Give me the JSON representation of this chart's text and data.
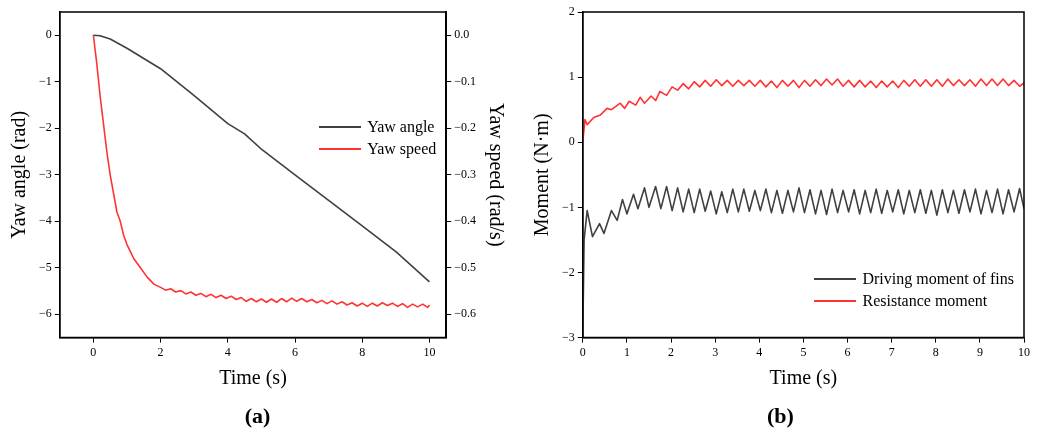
{
  "chart_data": [
    {
      "type": "line",
      "xlabel": "Time (s)",
      "ylabel": "Yaw angle (rad)",
      "y2label": "Yaw speed (rad/s)",
      "xlim": [
        -1,
        10.5
      ],
      "xticks": [
        0,
        2,
        4,
        6,
        8,
        10
      ],
      "ylim": [
        -6.5,
        0.5
      ],
      "yticks": [
        -6,
        -5,
        -4,
        -3,
        -2,
        -1,
        0
      ],
      "y2lim": [
        -0.65,
        0.05
      ],
      "y2ticks": [
        -0.6,
        -0.5,
        -0.4,
        -0.3,
        -0.2,
        -0.1,
        {
          "value": 0,
          "label": "0.0"
        }
      ],
      "legend": "right",
      "grid": false,
      "annotations": [
        "(a)"
      ],
      "series": [
        {
          "name": "Yaw angle",
          "color": "#404040",
          "x": [
            0,
            0.2,
            0.5,
            1,
            1.5,
            2,
            3,
            4,
            4.5,
            5,
            6,
            7,
            8,
            9,
            10
          ],
          "values": [
            0,
            -0.01,
            -0.08,
            -0.28,
            -0.5,
            -0.72,
            -1.3,
            -1.9,
            -2.12,
            -2.45,
            -3.0,
            -3.55,
            -4.1,
            -4.65,
            -5.3
          ]
        },
        {
          "name": "Yaw speed",
          "color": "#ff3333",
          "axis": "y2",
          "x": [
            0,
            0.1,
            0.2,
            0.3,
            0.4,
            0.5,
            0.6,
            0.7,
            0.8,
            0.9,
            1.0,
            1.2,
            1.4,
            1.6,
            1.8,
            2.0,
            2.15,
            2.3,
            2.45,
            2.6,
            2.75,
            2.9,
            3.05,
            3.2,
            3.35,
            3.5,
            3.65,
            3.8,
            3.95,
            4.1,
            4.25,
            4.4,
            4.55,
            4.7,
            4.85,
            5.0,
            5.15,
            5.3,
            5.45,
            5.6,
            5.75,
            5.9,
            6.05,
            6.2,
            6.35,
            6.5,
            6.65,
            6.8,
            6.95,
            7.1,
            7.25,
            7.4,
            7.55,
            7.7,
            7.85,
            8.0,
            8.15,
            8.3,
            8.45,
            8.6,
            8.75,
            8.9,
            9.05,
            9.2,
            9.35,
            9.5,
            9.65,
            9.8,
            9.95,
            10.0
          ],
          "values": [
            0,
            -0.06,
            -0.13,
            -0.19,
            -0.25,
            -0.3,
            -0.34,
            -0.38,
            -0.4,
            -0.43,
            -0.45,
            -0.48,
            -0.5,
            -0.52,
            -0.535,
            -0.542,
            -0.548,
            -0.545,
            -0.552,
            -0.549,
            -0.556,
            -0.552,
            -0.559,
            -0.555,
            -0.562,
            -0.557,
            -0.564,
            -0.559,
            -0.566,
            -0.561,
            -0.568,
            -0.564,
            -0.572,
            -0.566,
            -0.573,
            -0.567,
            -0.574,
            -0.567,
            -0.574,
            -0.566,
            -0.573,
            -0.565,
            -0.572,
            -0.566,
            -0.573,
            -0.568,
            -0.575,
            -0.57,
            -0.577,
            -0.571,
            -0.578,
            -0.573,
            -0.58,
            -0.575,
            -0.582,
            -0.576,
            -0.583,
            -0.576,
            -0.582,
            -0.575,
            -0.581,
            -0.576,
            -0.583,
            -0.577,
            -0.585,
            -0.578,
            -0.584,
            -0.578,
            -0.585,
            -0.58
          ]
        }
      ]
    },
    {
      "type": "line",
      "xlabel": "Time (s)",
      "ylabel": "Moment (N·m)",
      "xlim": [
        0,
        10
      ],
      "xticks": [
        0,
        1,
        2,
        3,
        4,
        5,
        6,
        7,
        8,
        9,
        10
      ],
      "ylim": [
        -3,
        2
      ],
      "yticks": [
        -3,
        -2,
        -1,
        0,
        1,
        2
      ],
      "legend": "bottom right",
      "grid": false,
      "annotations": [
        "(b)"
      ],
      "series": [
        {
          "name": "Driving moment of fins",
          "color": "#404040",
          "x": [
            0,
            0.03,
            0.1,
            0.22,
            0.38,
            0.48,
            0.65,
            0.78,
            0.9,
            1.0,
            1.15,
            1.25,
            1.4,
            1.5,
            1.65,
            1.77,
            1.9,
            2.025,
            2.15,
            2.275,
            2.4,
            2.525,
            2.65,
            2.775,
            2.9,
            3.025,
            3.15,
            3.275,
            3.4,
            3.525,
            3.65,
            3.775,
            3.9,
            4.025,
            4.15,
            4.275,
            4.4,
            4.525,
            4.65,
            4.775,
            4.9,
            5.025,
            5.15,
            5.275,
            5.4,
            5.525,
            5.65,
            5.775,
            5.9,
            6.025,
            6.15,
            6.275,
            6.4,
            6.525,
            6.65,
            6.775,
            6.9,
            7.025,
            7.15,
            7.275,
            7.4,
            7.525,
            7.65,
            7.775,
            7.9,
            8.025,
            8.15,
            8.275,
            8.4,
            8.525,
            8.65,
            8.775,
            8.9,
            9.025,
            9.15,
            9.275,
            9.4,
            9.525,
            9.65,
            9.775,
            9.9,
            10.0
          ],
          "values": [
            -3,
            -1.5,
            -1.05,
            -1.45,
            -1.25,
            -1.4,
            -1.05,
            -1.2,
            -0.88,
            -1.1,
            -0.8,
            -1.02,
            -0.7,
            -1.0,
            -0.68,
            -1.02,
            -0.68,
            -1.05,
            -0.7,
            -1.07,
            -0.72,
            -1.08,
            -0.72,
            -1.06,
            -0.75,
            -1.1,
            -0.76,
            -1.08,
            -0.72,
            -1.07,
            -0.72,
            -1.06,
            -0.74,
            -1.05,
            -0.72,
            -1.08,
            -0.74,
            -1.09,
            -0.74,
            -1.07,
            -0.7,
            -1.08,
            -0.73,
            -1.1,
            -0.74,
            -1.11,
            -0.72,
            -1.08,
            -0.74,
            -1.07,
            -0.73,
            -1.1,
            -0.74,
            -1.08,
            -0.72,
            -1.09,
            -0.74,
            -1.07,
            -0.73,
            -1.1,
            -0.74,
            -1.08,
            -0.73,
            -1.09,
            -0.74,
            -1.12,
            -0.73,
            -1.08,
            -0.74,
            -1.09,
            -0.73,
            -1.07,
            -0.72,
            -1.1,
            -0.74,
            -1.08,
            -0.72,
            -1.1,
            -0.73,
            -1.07,
            -0.71,
            -1.02
          ]
        },
        {
          "name": "Resistance moment",
          "color": "#ff3333",
          "x": [
            0,
            0.05,
            0.1,
            0.25,
            0.4,
            0.55,
            0.65,
            0.85,
            0.95,
            1.05,
            1.2,
            1.3,
            1.4,
            1.55,
            1.65,
            1.75,
            1.9,
            2.025,
            2.15,
            2.275,
            2.4,
            2.525,
            2.65,
            2.775,
            2.9,
            3.025,
            3.15,
            3.275,
            3.4,
            3.525,
            3.65,
            3.775,
            3.9,
            4.025,
            4.15,
            4.275,
            4.4,
            4.525,
            4.65,
            4.775,
            4.9,
            5.025,
            5.15,
            5.275,
            5.4,
            5.525,
            5.65,
            5.775,
            5.9,
            6.025,
            6.15,
            6.275,
            6.4,
            6.525,
            6.65,
            6.775,
            6.9,
            7.025,
            7.15,
            7.275,
            7.4,
            7.525,
            7.65,
            7.775,
            7.9,
            8.025,
            8.15,
            8.275,
            8.4,
            8.525,
            8.65,
            8.775,
            8.9,
            9.025,
            9.15,
            9.275,
            9.4,
            9.525,
            9.65,
            9.775,
            9.9,
            10.0
          ],
          "values": [
            0,
            0.35,
            0.27,
            0.38,
            0.42,
            0.52,
            0.5,
            0.6,
            0.52,
            0.63,
            0.57,
            0.69,
            0.6,
            0.71,
            0.64,
            0.78,
            0.72,
            0.85,
            0.8,
            0.9,
            0.82,
            0.93,
            0.85,
            0.95,
            0.86,
            0.96,
            0.87,
            0.95,
            0.86,
            0.95,
            0.87,
            0.95,
            0.86,
            0.95,
            0.85,
            0.94,
            0.84,
            0.95,
            0.86,
            0.95,
            0.84,
            0.95,
            0.86,
            0.96,
            0.87,
            0.97,
            0.88,
            0.97,
            0.86,
            0.95,
            0.85,
            0.95,
            0.85,
            0.94,
            0.84,
            0.94,
            0.85,
            0.94,
            0.84,
            0.95,
            0.86,
            0.96,
            0.86,
            0.96,
            0.86,
            0.96,
            0.86,
            0.97,
            0.87,
            0.96,
            0.87,
            0.96,
            0.86,
            0.97,
            0.87,
            0.97,
            0.87,
            0.97,
            0.87,
            0.95,
            0.86,
            0.91
          ]
        }
      ]
    }
  ]
}
